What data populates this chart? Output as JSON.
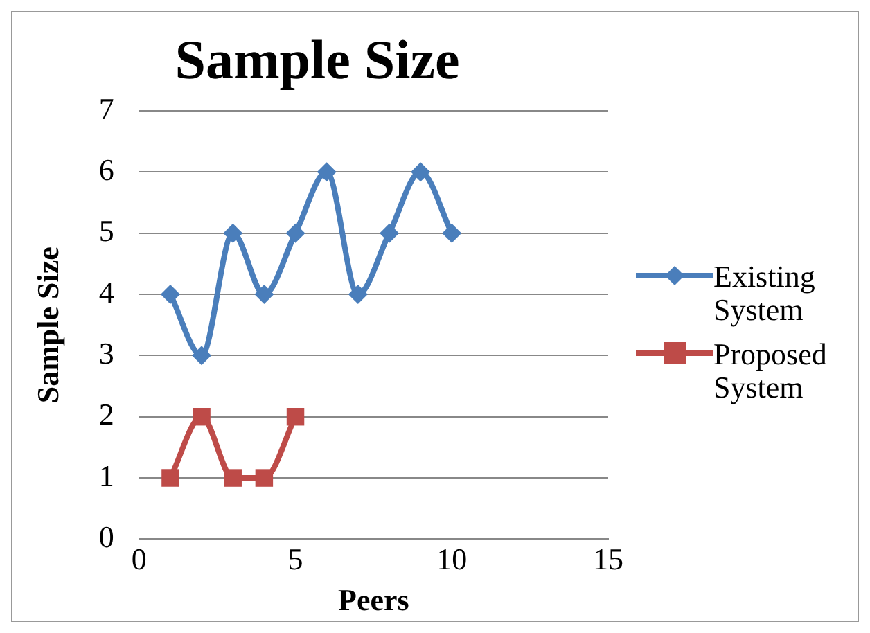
{
  "chart_data": {
    "type": "line",
    "title": "Sample Size",
    "xlabel": "Peers",
    "ylabel": "Sample Size",
    "xlim": [
      0,
      15
    ],
    "xticks": [
      0,
      5,
      10,
      15
    ],
    "ylim": [
      0,
      7
    ],
    "yticks": [
      0,
      1,
      2,
      3,
      4,
      5,
      6,
      7
    ],
    "grid": "y",
    "legend": "right",
    "series": [
      {
        "name": "Existing System",
        "color": "#4a7ebb",
        "marker": "diamond",
        "x": [
          1,
          2,
          3,
          4,
          5,
          6,
          7,
          8,
          9,
          10
        ],
        "values": [
          4,
          3,
          5,
          4,
          5,
          6,
          4,
          5,
          6,
          5
        ]
      },
      {
        "name": "Proposed System",
        "color": "#be4b48",
        "marker": "square",
        "x": [
          1,
          2,
          3,
          4,
          5
        ],
        "values": [
          1,
          2,
          1,
          1,
          2
        ]
      }
    ]
  }
}
